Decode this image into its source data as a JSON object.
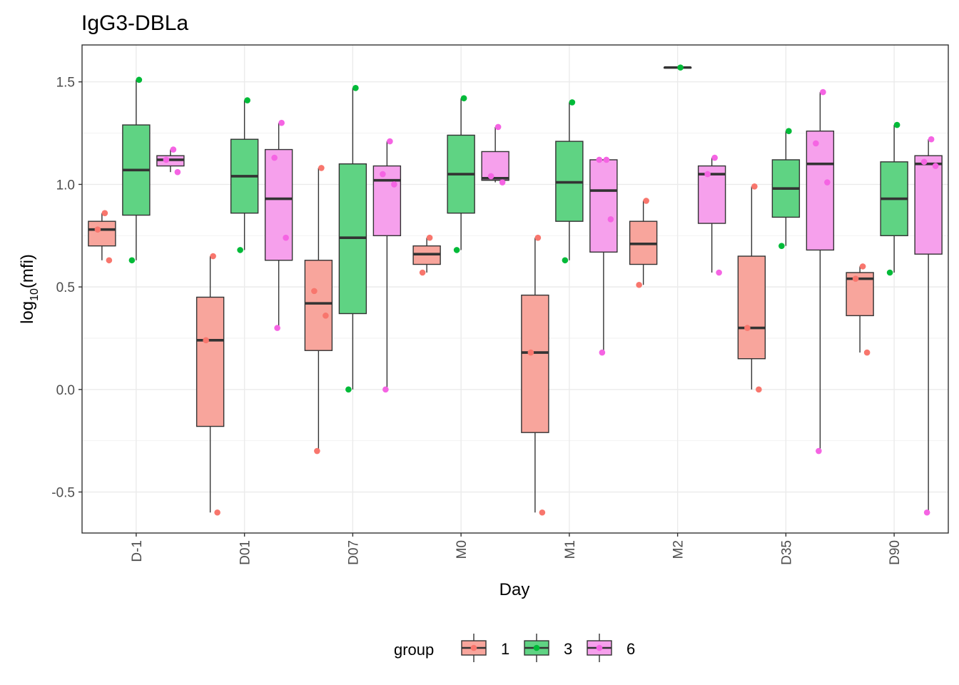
{
  "chart_data": {
    "type": "boxplot",
    "title": "IgG3-DBLa",
    "xlabel": "Day",
    "ylabel_main": "log",
    "ylabel_sub": "10",
    "ylabel_paren": "(mfi)",
    "categories": [
      "D-1",
      "D01",
      "D07",
      "M0",
      "M1",
      "M2",
      "D35",
      "D90"
    ],
    "ylim": [
      -0.7,
      1.68
    ],
    "yticks": [
      -0.5,
      0.0,
      0.5,
      1.0,
      1.5
    ],
    "ytick_labels": [
      "-0.5",
      "0.0",
      "0.5",
      "1.0",
      "1.5"
    ],
    "grid": true,
    "legend": {
      "title": "group",
      "position": "bottom",
      "items": [
        {
          "label": "1",
          "fill": "#f8a59c",
          "point": "#f8766d"
        },
        {
          "label": "3",
          "fill": "#5fd383",
          "point": "#00ba38"
        },
        {
          "label": "6",
          "fill": "#f6a0ec",
          "point": "#f564e3"
        }
      ]
    },
    "series": [
      {
        "name": "1",
        "boxes": [
          {
            "category": "D-1",
            "min": 0.63,
            "q1": 0.7,
            "median": 0.78,
            "q3": 0.82,
            "max": 0.86,
            "points": [
              0.86,
              0.78,
              0.63
            ]
          },
          {
            "category": "D01",
            "min": -0.6,
            "q1": -0.18,
            "median": 0.24,
            "q3": 0.45,
            "max": 0.65,
            "points": [
              0.65,
              0.24,
              -0.6
            ]
          },
          {
            "category": "D07",
            "min": -0.3,
            "q1": 0.19,
            "median": 0.42,
            "q3": 0.63,
            "max": 1.08,
            "points": [
              1.08,
              0.48,
              0.36,
              -0.3
            ]
          },
          {
            "category": "M0",
            "min": 0.57,
            "q1": 0.61,
            "median": 0.66,
            "q3": 0.7,
            "max": 0.74,
            "points": [
              0.74,
              0.57
            ]
          },
          {
            "category": "M1",
            "min": -0.6,
            "q1": -0.21,
            "median": 0.18,
            "q3": 0.46,
            "max": 0.74,
            "points": [
              0.74,
              0.18,
              -0.6
            ]
          },
          {
            "category": "M2",
            "min": 0.51,
            "q1": 0.61,
            "median": 0.71,
            "q3": 0.82,
            "max": 0.92,
            "points": [
              0.92,
              0.51
            ]
          },
          {
            "category": "D35",
            "min": 0.0,
            "q1": 0.15,
            "median": 0.3,
            "q3": 0.65,
            "max": 0.99,
            "points": [
              0.99,
              0.3,
              0.0
            ]
          },
          {
            "category": "D90",
            "min": 0.18,
            "q1": 0.36,
            "median": 0.54,
            "q3": 0.57,
            "max": 0.6,
            "points": [
              0.6,
              0.54,
              0.18
            ]
          }
        ]
      },
      {
        "name": "3",
        "boxes": [
          {
            "category": "D-1",
            "min": 0.63,
            "q1": 0.85,
            "median": 1.07,
            "q3": 1.29,
            "max": 1.51,
            "points": [
              1.51,
              0.63
            ]
          },
          {
            "category": "D01",
            "min": 0.68,
            "q1": 0.86,
            "median": 1.04,
            "q3": 1.22,
            "max": 1.41,
            "points": [
              1.41,
              0.68
            ]
          },
          {
            "category": "D07",
            "min": 0.0,
            "q1": 0.37,
            "median": 0.74,
            "q3": 1.1,
            "max": 1.47,
            "points": [
              1.47,
              0.0
            ]
          },
          {
            "category": "M0",
            "min": 0.68,
            "q1": 0.86,
            "median": 1.05,
            "q3": 1.24,
            "max": 1.42,
            "points": [
              1.42,
              0.68
            ]
          },
          {
            "category": "M1",
            "min": 0.63,
            "q1": 0.82,
            "median": 1.01,
            "q3": 1.21,
            "max": 1.4,
            "points": [
              1.4,
              0.63
            ]
          },
          {
            "category": "M2",
            "min": 1.57,
            "q1": 1.57,
            "median": 1.57,
            "q3": 1.57,
            "max": 1.57,
            "points": [
              1.57
            ]
          },
          {
            "category": "D35",
            "min": 0.7,
            "q1": 0.84,
            "median": 0.98,
            "q3": 1.12,
            "max": 1.26,
            "points": [
              1.26,
              0.7
            ]
          },
          {
            "category": "D90",
            "min": 0.57,
            "q1": 0.75,
            "median": 0.93,
            "q3": 1.11,
            "max": 1.29,
            "points": [
              1.29,
              0.57
            ]
          }
        ]
      },
      {
        "name": "6",
        "boxes": [
          {
            "category": "D-1",
            "min": 1.06,
            "q1": 1.09,
            "median": 1.12,
            "q3": 1.14,
            "max": 1.17,
            "points": [
              1.17,
              1.12,
              1.06
            ]
          },
          {
            "category": "D01",
            "min": 0.3,
            "q1": 0.63,
            "median": 0.93,
            "q3": 1.17,
            "max": 1.3,
            "points": [
              1.3,
              1.13,
              0.74,
              0.3
            ]
          },
          {
            "category": "D07",
            "min": 0.0,
            "q1": 0.75,
            "median": 1.02,
            "q3": 1.09,
            "max": 1.21,
            "points": [
              1.21,
              1.05,
              1.0,
              0.0
            ]
          },
          {
            "category": "M0",
            "min": 1.01,
            "q1": 1.02,
            "median": 1.03,
            "q3": 1.16,
            "max": 1.28,
            "points": [
              1.28,
              1.04,
              1.01
            ]
          },
          {
            "category": "M1",
            "min": 0.18,
            "q1": 0.67,
            "median": 0.97,
            "q3": 1.12,
            "max": 1.12,
            "points": [
              1.12,
              1.12,
              0.83,
              0.18
            ]
          },
          {
            "category": "M2",
            "min": 0.57,
            "q1": 0.81,
            "median": 1.05,
            "q3": 1.09,
            "max": 1.13,
            "points": [
              1.13,
              1.05,
              0.57
            ]
          },
          {
            "category": "D35",
            "min": -0.3,
            "q1": 0.68,
            "median": 1.1,
            "q3": 1.26,
            "max": 1.45,
            "points": [
              1.45,
              1.2,
              1.01,
              -0.3
            ]
          },
          {
            "category": "D90",
            "min": -0.6,
            "q1": 0.66,
            "median": 1.1,
            "q3": 1.14,
            "max": 1.22,
            "points": [
              1.22,
              1.11,
              1.09,
              -0.6
            ]
          }
        ]
      }
    ]
  }
}
